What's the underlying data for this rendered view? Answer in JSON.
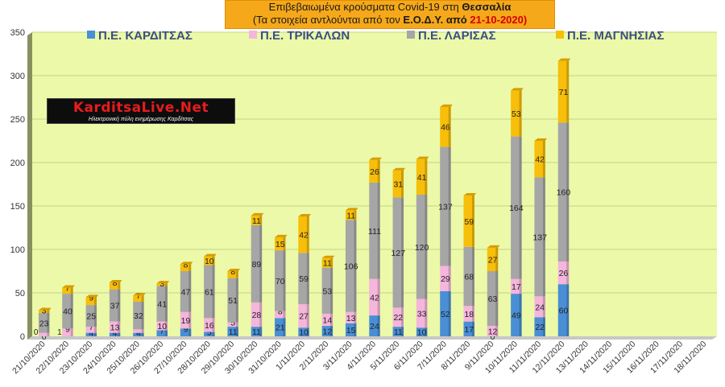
{
  "title": {
    "line1_prefix": "Επιβεβαιωμένα κρούσματα Covid-19 στη",
    "line1_region": "Θεσσαλία",
    "line2_prefix": "(Τα στοιχεία αντλούνται από τον",
    "line2_org": "Ε.Ο.Δ.Υ. από",
    "line2_date": "21-10-2020)"
  },
  "logo": {
    "text": "KarditsaLive.Net",
    "tagline": "Ηλεκτρονική πύλη ενημέρωσης Καρδίτσας"
  },
  "colors": {
    "plot_background": "#ecf9a8",
    "gridline": "#c5d48a",
    "axis_line": "#a0a0a0"
  },
  "chart_data": {
    "type": "bar",
    "stacked": true,
    "legend_position": "top",
    "grid": true,
    "ylim": [
      0,
      350
    ],
    "yticks": [
      0,
      50,
      100,
      150,
      200,
      250,
      300,
      350
    ],
    "categories": [
      "21/10/2020",
      "22/10/2020",
      "23/10/2020",
      "24/10/2020",
      "25/10/2020",
      "26/10/2020",
      "27/10/2020",
      "28/10/2020",
      "29/10/2020",
      "30/10/2020",
      "31/10/2020",
      "1/11/2020",
      "2/11/2020",
      "3/11/2020",
      "4/11/2020",
      "5/11/2020",
      "6/11/2020",
      "7/11/2020",
      "8/11/2020",
      "9/11/2020",
      "10/11/2020",
      "11/11/2020",
      "12/11/2020",
      "13/11/2020",
      "14/11/2020",
      "15/11/2020",
      "16/11/2020",
      "17/11/2020",
      "18/11/2020"
    ],
    "series": [
      {
        "name": "Π.Ε. ΚΑΡΔΙΤΣΑΣ",
        "color": "#4a8fd6",
        "values": [
          0,
          null,
          4,
          4,
          4,
          7,
          9,
          5,
          11,
          11,
          21,
          10,
          12,
          15,
          24,
          11,
          10,
          52,
          17,
          0,
          49,
          22,
          60,
          null,
          null,
          null,
          null,
          null,
          null
        ],
        "labels": [
          "0",
          "",
          "4",
          "4",
          "4",
          "7",
          "9",
          "5",
          "11",
          "11",
          "21",
          "10",
          "12",
          "15",
          "24",
          "11",
          "10",
          "52",
          "17",
          "0",
          "49",
          "22",
          "60",
          "",
          "",
          "",
          "",
          "",
          ""
        ]
      },
      {
        "name": "Π.Ε. ΤΡΙΚΑΛΩΝ",
        "color": "#f5b5dc",
        "values": [
          4,
          9,
          7,
          13,
          4,
          10,
          19,
          16,
          5,
          28,
          8,
          27,
          14,
          13,
          42,
          22,
          33,
          29,
          18,
          12,
          17,
          24,
          26,
          null,
          null,
          null,
          null,
          null,
          null
        ],
        "labels": [
          "",
          "9",
          "7",
          "13",
          "",
          "10",
          "19",
          "16",
          "5",
          "28",
          "8",
          "27",
          "14",
          "13",
          "42",
          "22",
          "33",
          "29",
          "18",
          "12",
          "17",
          "24",
          "26",
          "",
          "",
          "",
          "",
          "",
          ""
        ]
      },
      {
        "name": "Π.Ε. ΛΑΡΙΣΑΣ",
        "color": "#a6a6a6",
        "values": [
          23,
          40,
          25,
          37,
          32,
          41,
          47,
          61,
          51,
          89,
          70,
          59,
          53,
          106,
          111,
          127,
          120,
          137,
          68,
          63,
          164,
          137,
          160,
          null,
          null,
          null,
          null,
          null,
          null
        ],
        "labels": [
          "23",
          "40",
          "25",
          "37",
          "32",
          "41",
          "47",
          "61",
          "51",
          "89",
          "70",
          "59",
          "53",
          "106",
          "111",
          "127",
          "120",
          "137",
          "68",
          "63",
          "164",
          "137",
          "160",
          "",
          "",
          "",
          "",
          "",
          ""
        ]
      },
      {
        "name": "Π.Ε. ΜΑΓΝΗΣΙΑΣ",
        "color": "#f7be0a",
        "values": [
          3,
          7,
          9,
          8,
          7,
          3,
          8,
          10,
          8,
          11,
          15,
          42,
          11,
          11,
          26,
          31,
          41,
          46,
          59,
          27,
          53,
          42,
          71,
          null,
          null,
          null,
          null,
          null,
          null
        ],
        "labels": [
          "3",
          "7",
          "9",
          "8",
          "7",
          "3",
          "8",
          "10",
          "8",
          "11",
          "15",
          "42",
          "11",
          "11",
          "26",
          "31",
          "41",
          "46",
          "59",
          "27",
          "53",
          "42",
          "71",
          "",
          "",
          "",
          "",
          "",
          ""
        ]
      }
    ],
    "extra_labels": [
      {
        "category_index": 0,
        "text": "0"
      },
      {
        "category_index": 1,
        "text": "1"
      }
    ]
  }
}
